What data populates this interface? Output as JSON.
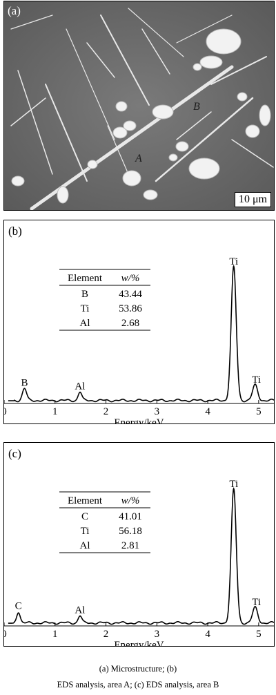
{
  "panel_a": {
    "label": "(a)",
    "markers": {
      "A": "A",
      "B": "B"
    },
    "scalebar": "10 μm"
  },
  "chart_data": [
    {
      "type": "line",
      "panel_label": "(b)",
      "xlabel": "Energy/keV",
      "xlim": [
        0,
        5.3
      ],
      "xticks": [
        "0",
        "1",
        "2",
        "3",
        "4",
        "5"
      ],
      "peaks": [
        {
          "label": "B",
          "energy": 0.4,
          "rel_height": 0.09
        },
        {
          "label": "Al",
          "energy": 1.49,
          "rel_height": 0.065
        },
        {
          "label": "Ti",
          "energy": 4.51,
          "rel_height": 1.0
        },
        {
          "label": "Ti",
          "energy": 4.93,
          "rel_height": 0.115
        }
      ],
      "table": {
        "headers": [
          "Element",
          "w/%"
        ],
        "rows": [
          [
            "B",
            "43.44"
          ],
          [
            "Ti",
            "53.86"
          ],
          [
            "Al",
            "2.68"
          ]
        ]
      }
    },
    {
      "type": "line",
      "panel_label": "(c)",
      "xlabel": "Energy/keV",
      "xlim": [
        0,
        5.3
      ],
      "xticks": [
        "0",
        "1",
        "2",
        "3",
        "4",
        "5"
      ],
      "peaks": [
        {
          "label": "C",
          "energy": 0.28,
          "rel_height": 0.085
        },
        {
          "label": "Al",
          "energy": 1.49,
          "rel_height": 0.055
        },
        {
          "label": "Ti",
          "energy": 4.51,
          "rel_height": 1.0
        },
        {
          "label": "Ti",
          "energy": 4.93,
          "rel_height": 0.115
        }
      ],
      "table": {
        "headers": [
          "Element",
          "w/%"
        ],
        "rows": [
          [
            "C",
            "41.01"
          ],
          [
            "Ti",
            "56.18"
          ],
          [
            "Al",
            "2.81"
          ]
        ]
      }
    }
  ],
  "caption": {
    "line1": "(a)  Microstructure;  (b)",
    "line2": "EDS analysis, area A; (c) EDS analysis, area B"
  }
}
